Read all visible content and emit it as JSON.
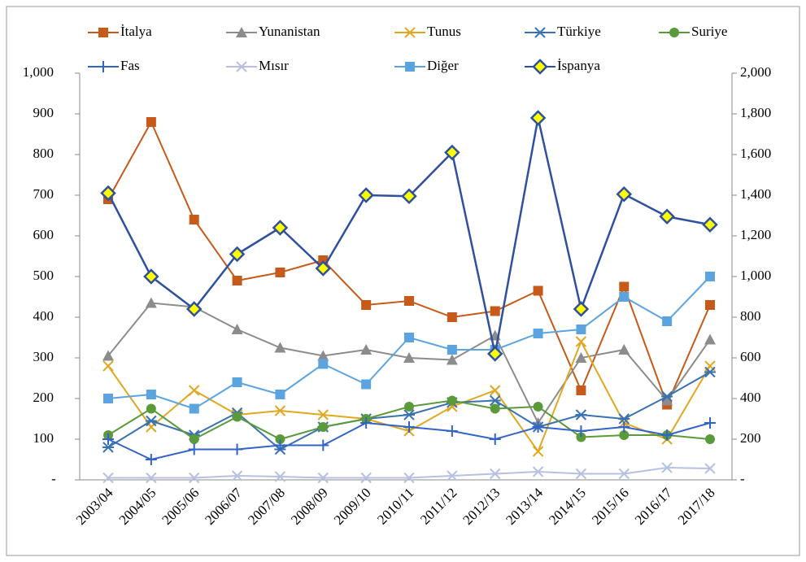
{
  "chart_data": {
    "type": "line",
    "categories": [
      "2003/04",
      "2004/05",
      "2005/06",
      "2006/07",
      "2007/08",
      "2008/09",
      "2009/10",
      "2010/11",
      "2011/12",
      "2012/13",
      "2013/14",
      "2014/15",
      "2015/16",
      "2016/17",
      "2017/18"
    ],
    "ylim": [
      0,
      1000
    ],
    "yticks": [
      {
        "value": 0,
        "label": "-"
      },
      100,
      200,
      300,
      400,
      500,
      600,
      700,
      800,
      900,
      {
        "value": 1000,
        "label": "1,000"
      }
    ],
    "y2lim": [
      0,
      2000
    ],
    "y2ticks": [
      {
        "value": 0,
        "label": "-"
      },
      200,
      400,
      600,
      800,
      {
        "value": 1000,
        "label": "1,000"
      },
      {
        "value": 1200,
        "label": "1,200"
      },
      {
        "value": 1400,
        "label": "1,400"
      },
      {
        "value": 1600,
        "label": "1,600"
      },
      {
        "value": 1800,
        "label": "1,800"
      },
      {
        "value": 2000,
        "label": "2,000"
      }
    ],
    "legend": "top",
    "series": [
      {
        "name": "İtalya",
        "color": "#c55a1a",
        "marker": "square",
        "values": [
          690,
          880,
          640,
          490,
          510,
          540,
          430,
          440,
          400,
          415,
          465,
          220,
          475,
          185,
          430
        ]
      },
      {
        "name": "Yunanistan",
        "color": "#8c8c8c",
        "marker": "triangle",
        "values": [
          305,
          435,
          425,
          370,
          325,
          305,
          320,
          300,
          295,
          355,
          140,
          300,
          320,
          195,
          345
        ]
      },
      {
        "name": "Tunus",
        "color": "#e0a820",
        "marker": "x",
        "values": [
          280,
          130,
          220,
          160,
          170,
          160,
          150,
          120,
          180,
          220,
          70,
          340,
          140,
          100,
          280
        ]
      },
      {
        "name": "Türkiye",
        "color": "#3a72b0",
        "marker": "star",
        "values": [
          80,
          145,
          110,
          165,
          75,
          130,
          150,
          160,
          190,
          195,
          130,
          160,
          150,
          205,
          265
        ]
      },
      {
        "name": "Suriye",
        "color": "#5a9a3a",
        "marker": "circle",
        "values": [
          110,
          175,
          100,
          155,
          100,
          130,
          150,
          180,
          195,
          175,
          180,
          105,
          110,
          110,
          100
        ]
      },
      {
        "name": "Fas",
        "color": "#3264c8",
        "marker": "plus",
        "values": [
          100,
          50,
          75,
          75,
          85,
          85,
          140,
          130,
          120,
          100,
          130,
          120,
          130,
          110,
          140
        ]
      },
      {
        "name": "Mısır",
        "color": "#b8c0e0",
        "marker": "x",
        "values": [
          5,
          5,
          5,
          10,
          8,
          5,
          5,
          5,
          10,
          15,
          20,
          15,
          15,
          30,
          28
        ]
      },
      {
        "name": "Diğer",
        "color": "#5ba4e0",
        "marker": "square",
        "values": [
          200,
          210,
          175,
          240,
          210,
          285,
          235,
          350,
          320,
          320,
          360,
          370,
          450,
          390,
          500
        ]
      },
      {
        "name": "İspanya",
        "color": "#2f4f9f",
        "marker": "diamond",
        "marker_color": "#ffff00",
        "axis": "y2",
        "values": [
          1410,
          1000,
          840,
          1110,
          1240,
          1040,
          1400,
          1395,
          1610,
          620,
          1780,
          840,
          1405,
          1295,
          1255
        ]
      }
    ]
  }
}
